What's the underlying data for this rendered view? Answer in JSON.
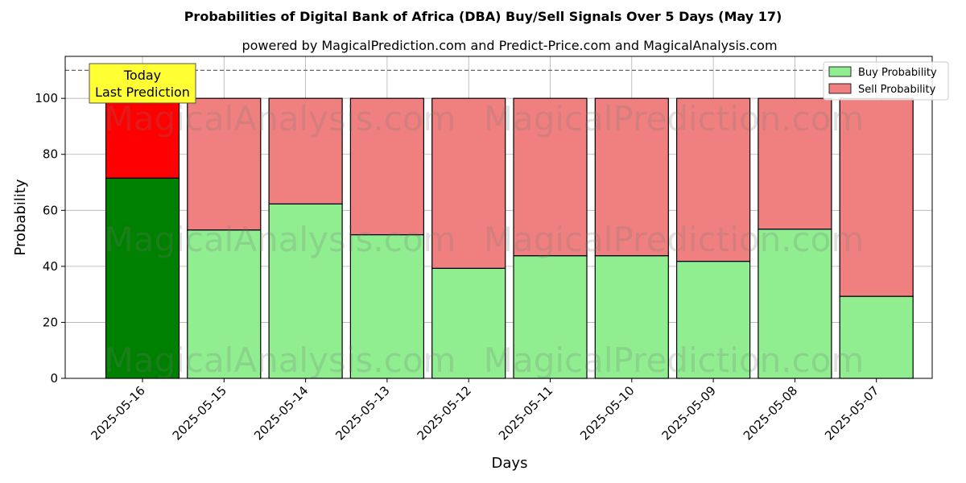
{
  "chart_data": {
    "type": "bar",
    "stacked": true,
    "title": "Probabilities of Digital Bank of Africa (DBA) Buy/Sell Signals Over 5 Days (May 17)",
    "subtitle": "powered by MagicalPrediction.com and Predict-Price.com and MagicalAnalysis.com",
    "xlabel": "Days",
    "ylabel": "Probability",
    "ylim": [
      0,
      115
    ],
    "yticks": [
      0,
      20,
      40,
      60,
      80,
      100
    ],
    "grid": true,
    "legend_position": "top-right",
    "categories": [
      "2025-05-16",
      "2025-05-15",
      "2025-05-14",
      "2025-05-13",
      "2025-05-12",
      "2025-05-11",
      "2025-05-10",
      "2025-05-09",
      "2025-05-08",
      "2025-05-07"
    ],
    "series": [
      {
        "name": "Buy Probability",
        "values": [
          71.5,
          53,
          62.3,
          51.3,
          39.3,
          43.8,
          43.8,
          41.8,
          53.3,
          29.3
        ]
      },
      {
        "name": "Sell Probability",
        "values": [
          28.5,
          47,
          37.7,
          48.7,
          60.7,
          56.2,
          56.2,
          58.2,
          46.7,
          70.7
        ]
      }
    ],
    "colors": {
      "buy": "#90ee90",
      "sell": "#f08080",
      "buy_highlight": "#008000",
      "sell_highlight": "#ff0000",
      "annotation_bg": "#ffff33"
    },
    "reference_line": {
      "y": 110,
      "style": "dashed"
    },
    "annotation": {
      "lines": [
        "Today",
        "Last Prediction"
      ],
      "category": "2025-05-16"
    },
    "watermarks": [
      "MagicalAnalysis.com",
      "MagicalPrediction.com"
    ]
  }
}
